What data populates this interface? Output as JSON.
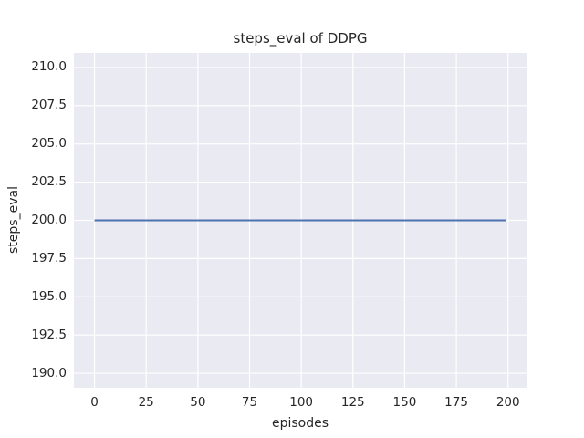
{
  "chart_data": {
    "type": "line",
    "title": "steps_eval of DDPG",
    "xlabel": "episodes",
    "ylabel": "steps_eval",
    "x_ticks": [
      0,
      25,
      50,
      75,
      100,
      125,
      150,
      175,
      200
    ],
    "x_tick_labels": [
      "0",
      "25",
      "50",
      "75",
      "100",
      "125",
      "150",
      "175",
      "200"
    ],
    "y_ticks": [
      190.0,
      192.5,
      195.0,
      197.5,
      200.0,
      202.5,
      205.0,
      207.5,
      210.0
    ],
    "y_tick_labels": [
      "190.0",
      "192.5",
      "195.0",
      "197.5",
      "200.0",
      "202.5",
      "205.0",
      "207.5",
      "210.0"
    ],
    "xlim": [
      -9.95,
      208.95
    ],
    "ylim": [
      189.05,
      210.95
    ],
    "grid": true,
    "legend": "none",
    "style": {
      "plot_background": "#eaeaf2",
      "grid_color": "#ffffff",
      "text_color": "#262626",
      "line_color": "#4c72b0"
    },
    "series": [
      {
        "name": "DDPG",
        "color": "#4c72b0",
        "note": "constant steps_eval value of 200 for every evaluated episode",
        "x": [
          0,
          199
        ],
        "y": [
          200,
          200
        ]
      }
    ]
  }
}
